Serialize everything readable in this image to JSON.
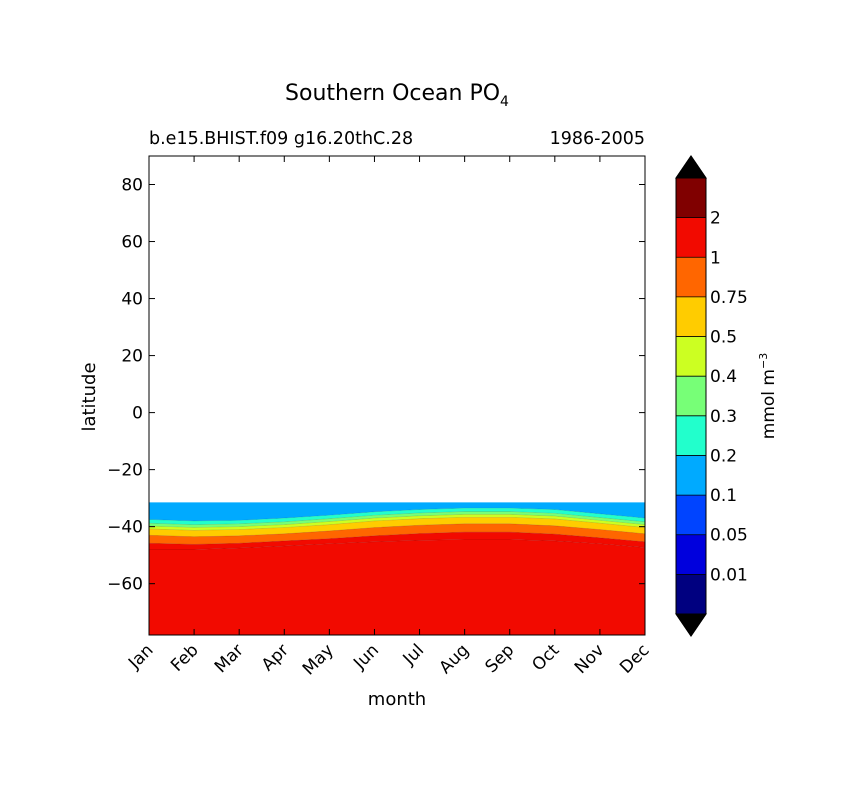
{
  "chart_data": {
    "type": "contourf",
    "title": "Southern Ocean PO",
    "title_subscript": "4",
    "subtitle_left": "b.e15.BHIST.f09 g16.20thC.28",
    "subtitle_right": "1986-2005",
    "xlabel": "month",
    "ylabel": "latitude",
    "x_ticks": [
      "Jan",
      "Feb",
      "Mar",
      "Apr",
      "May",
      "Jun",
      "Jul",
      "Aug",
      "Sep",
      "Oct",
      "Nov",
      "Dec"
    ],
    "y_ticks": [
      -60,
      -40,
      -20,
      0,
      20,
      40,
      60,
      80
    ],
    "y_tick_labels": [
      "−60",
      "−40",
      "−20",
      "0",
      "20",
      "40",
      "60",
      "80"
    ],
    "ylim": [
      -78,
      90
    ],
    "xlim": [
      0,
      11
    ],
    "data_top_latitude": -31.5,
    "months_index": [
      0,
      1,
      2,
      3,
      4,
      5,
      6,
      7,
      8,
      9,
      10,
      11
    ],
    "contours": {
      "0.2": [
        -37.5,
        -38.0,
        -37.8,
        -37.0,
        -36.0,
        -34.8,
        -34.0,
        -33.5,
        -33.5,
        -34.0,
        -35.5,
        -37.0
      ],
      "0.3": [
        -38.8,
        -39.3,
        -39.0,
        -38.3,
        -37.2,
        -36.0,
        -35.2,
        -34.7,
        -34.7,
        -35.3,
        -36.8,
        -38.3
      ],
      "0.4": [
        -39.8,
        -40.3,
        -40.0,
        -39.3,
        -38.2,
        -37.0,
        -36.2,
        -35.7,
        -35.7,
        -36.3,
        -37.8,
        -39.3
      ],
      "0.5": [
        -40.8,
        -41.3,
        -41.0,
        -40.3,
        -39.3,
        -38.0,
        -37.2,
        -36.7,
        -36.7,
        -37.3,
        -38.8,
        -40.3
      ],
      "0.75": [
        -43.0,
        -43.5,
        -43.2,
        -42.5,
        -41.5,
        -40.3,
        -39.5,
        -39.0,
        -39.0,
        -39.7,
        -41.0,
        -42.5
      ],
      "1": [
        -45.8,
        -46.2,
        -45.8,
        -45.0,
        -44.2,
        -43.2,
        -42.4,
        -41.9,
        -41.9,
        -42.6,
        -43.9,
        -45.3
      ],
      "2": [
        -48.0,
        -48.0,
        -47.5,
        -46.8,
        -46.0,
        -45.3,
        -44.8,
        -44.5,
        -44.5,
        -45.0,
        -46.0,
        -47.3
      ]
    },
    "colorbar": {
      "label": "mmol m",
      "label_superscript": "−3",
      "tick_labels": [
        "0.01",
        "0.05",
        "0.1",
        "0.2",
        "0.3",
        "0.4",
        "0.5",
        "0.75",
        "1",
        "2"
      ],
      "colors": [
        "#000080",
        "#0000dd",
        "#0044ff",
        "#00aaff",
        "#22ffcc",
        "#77ff77",
        "#ccff22",
        "#ffcc00",
        "#ff6600",
        "#f20a00",
        "#800000"
      ],
      "extend_colors": [
        "#000000",
        "#000000"
      ]
    }
  }
}
